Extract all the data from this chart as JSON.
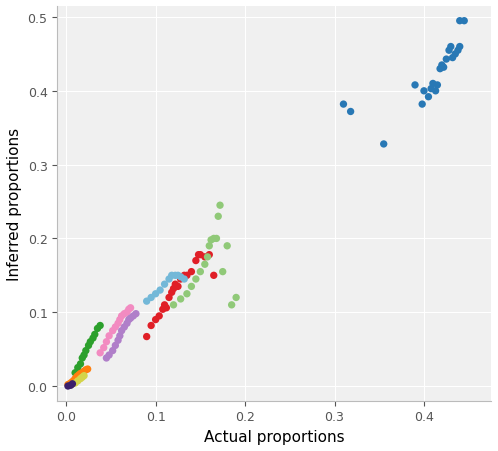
{
  "xlabel": "Actual proportions",
  "ylabel": "Inferred proportions",
  "xlim": [
    -0.01,
    0.475
  ],
  "ylim": [
    -0.02,
    0.515
  ],
  "xticks": [
    0.0,
    0.1,
    0.2,
    0.3,
    0.4
  ],
  "yticks": [
    0.0,
    0.1,
    0.2,
    0.3,
    0.4,
    0.5
  ],
  "background_color": "#f0f0f0",
  "grid_color": "#ffffff",
  "clusters": [
    {
      "color": "#2878b5",
      "points": [
        [
          0.31,
          0.382
        ],
        [
          0.318,
          0.372
        ],
        [
          0.355,
          0.328
        ],
        [
          0.39,
          0.408
        ],
        [
          0.398,
          0.382
        ],
        [
          0.4,
          0.4
        ],
        [
          0.405,
          0.392
        ],
        [
          0.408,
          0.403
        ],
        [
          0.41,
          0.41
        ],
        [
          0.413,
          0.4
        ],
        [
          0.415,
          0.408
        ],
        [
          0.418,
          0.43
        ],
        [
          0.42,
          0.435
        ],
        [
          0.422,
          0.432
        ],
        [
          0.425,
          0.443
        ],
        [
          0.428,
          0.455
        ],
        [
          0.43,
          0.46
        ],
        [
          0.432,
          0.445
        ],
        [
          0.435,
          0.45
        ],
        [
          0.438,
          0.455
        ],
        [
          0.44,
          0.46
        ],
        [
          0.44,
          0.495
        ],
        [
          0.445,
          0.495
        ]
      ]
    },
    {
      "color": "#e01f27",
      "points": [
        [
          0.09,
          0.067
        ],
        [
          0.095,
          0.082
        ],
        [
          0.1,
          0.09
        ],
        [
          0.104,
          0.095
        ],
        [
          0.108,
          0.104
        ],
        [
          0.11,
          0.11
        ],
        [
          0.112,
          0.106
        ],
        [
          0.115,
          0.12
        ],
        [
          0.118,
          0.127
        ],
        [
          0.12,
          0.132
        ],
        [
          0.122,
          0.138
        ],
        [
          0.125,
          0.135
        ],
        [
          0.128,
          0.145
        ],
        [
          0.132,
          0.15
        ],
        [
          0.135,
          0.15
        ],
        [
          0.14,
          0.155
        ],
        [
          0.145,
          0.17
        ],
        [
          0.148,
          0.178
        ],
        [
          0.15,
          0.178
        ],
        [
          0.155,
          0.175
        ],
        [
          0.16,
          0.178
        ],
        [
          0.165,
          0.15
        ]
      ]
    },
    {
      "color": "#2ca02c",
      "points": [
        [
          0.01,
          0.018
        ],
        [
          0.013,
          0.025
        ],
        [
          0.016,
          0.03
        ],
        [
          0.018,
          0.038
        ],
        [
          0.02,
          0.042
        ],
        [
          0.022,
          0.048
        ],
        [
          0.025,
          0.055
        ],
        [
          0.027,
          0.06
        ],
        [
          0.03,
          0.065
        ],
        [
          0.032,
          0.07
        ],
        [
          0.035,
          0.078
        ],
        [
          0.038,
          0.082
        ]
      ]
    },
    {
      "color": "#ff7f0e",
      "points": [
        [
          0.002,
          0.002
        ],
        [
          0.004,
          0.003
        ],
        [
          0.006,
          0.005
        ],
        [
          0.008,
          0.007
        ],
        [
          0.01,
          0.01
        ],
        [
          0.012,
          0.013
        ],
        [
          0.014,
          0.015
        ],
        [
          0.016,
          0.017
        ],
        [
          0.018,
          0.018
        ],
        [
          0.02,
          0.02
        ],
        [
          0.022,
          0.022
        ],
        [
          0.024,
          0.023
        ]
      ]
    },
    {
      "color": "#f28bc1",
      "points": [
        [
          0.038,
          0.045
        ],
        [
          0.042,
          0.052
        ],
        [
          0.045,
          0.06
        ],
        [
          0.048,
          0.068
        ],
        [
          0.052,
          0.075
        ],
        [
          0.055,
          0.08
        ],
        [
          0.058,
          0.085
        ],
        [
          0.06,
          0.09
        ],
        [
          0.062,
          0.095
        ],
        [
          0.065,
          0.098
        ],
        [
          0.068,
          0.1
        ],
        [
          0.07,
          0.104
        ],
        [
          0.072,
          0.106
        ]
      ]
    },
    {
      "color": "#b07fc9",
      "points": [
        [
          0.045,
          0.038
        ],
        [
          0.048,
          0.042
        ],
        [
          0.052,
          0.048
        ],
        [
          0.055,
          0.055
        ],
        [
          0.058,
          0.062
        ],
        [
          0.06,
          0.068
        ],
        [
          0.062,
          0.075
        ],
        [
          0.065,
          0.08
        ],
        [
          0.068,
          0.085
        ],
        [
          0.07,
          0.09
        ],
        [
          0.072,
          0.092
        ],
        [
          0.075,
          0.095
        ],
        [
          0.078,
          0.098
        ]
      ]
    },
    {
      "color": "#90c978",
      "points": [
        [
          0.12,
          0.11
        ],
        [
          0.128,
          0.118
        ],
        [
          0.135,
          0.125
        ],
        [
          0.14,
          0.135
        ],
        [
          0.145,
          0.145
        ],
        [
          0.15,
          0.155
        ],
        [
          0.155,
          0.165
        ],
        [
          0.158,
          0.175
        ],
        [
          0.16,
          0.19
        ],
        [
          0.162,
          0.198
        ],
        [
          0.165,
          0.2
        ],
        [
          0.168,
          0.2
        ],
        [
          0.17,
          0.23
        ],
        [
          0.172,
          0.245
        ],
        [
          0.175,
          0.155
        ],
        [
          0.18,
          0.19
        ],
        [
          0.185,
          0.11
        ],
        [
          0.19,
          0.12
        ]
      ]
    },
    {
      "color": "#73b8d8",
      "points": [
        [
          0.09,
          0.115
        ],
        [
          0.095,
          0.12
        ],
        [
          0.1,
          0.125
        ],
        [
          0.105,
          0.13
        ],
        [
          0.11,
          0.138
        ],
        [
          0.115,
          0.145
        ],
        [
          0.118,
          0.15
        ],
        [
          0.122,
          0.15
        ],
        [
          0.125,
          0.15
        ],
        [
          0.128,
          0.148
        ],
        [
          0.132,
          0.145
        ]
      ]
    },
    {
      "color": "#d4d44a",
      "points": [
        [
          0.006,
          0.002
        ],
        [
          0.01,
          0.004
        ],
        [
          0.013,
          0.007
        ],
        [
          0.016,
          0.01
        ],
        [
          0.018,
          0.012
        ],
        [
          0.02,
          0.014
        ]
      ]
    },
    {
      "color": "#3b1f6b",
      "points": [
        [
          0.002,
          0.0
        ],
        [
          0.005,
          0.001
        ],
        [
          0.007,
          0.003
        ]
      ]
    }
  ]
}
